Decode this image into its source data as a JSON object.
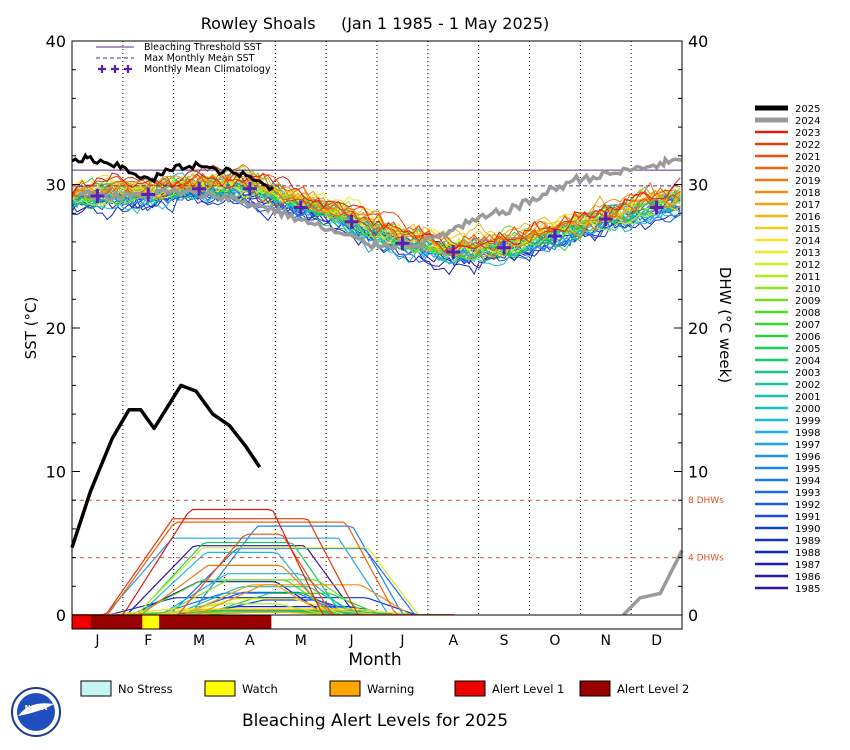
{
  "chart_data": {
    "type": "line",
    "title": "Rowley Shoals     (Jan 1 1985 - 1 May 2025)",
    "xlabel": "Month",
    "ylabel_left": "SST (°C)",
    "ylabel_right": "DHW (°C week)",
    "ylim": [
      0,
      40
    ],
    "yticks": [
      0,
      10,
      20,
      30,
      40
    ],
    "months": [
      "J",
      "F",
      "M",
      "A",
      "M",
      "J",
      "J",
      "A",
      "S",
      "O",
      "N",
      "D"
    ],
    "bleaching_threshold_sst": 31.0,
    "max_monthly_mean_sst": 29.9,
    "dhw_reference_lines": [
      {
        "value": 8,
        "label": "8 DHWs"
      },
      {
        "value": 4,
        "label": "4 DHWs"
      }
    ],
    "legend_top": [
      {
        "label": "Bleaching Threshold SST",
        "style": "solid",
        "color": "#5b2a86"
      },
      {
        "label": "Max Monthly Mean SST",
        "style": "dashed",
        "color": "#5b2a86"
      },
      {
        "label": "Monthly Mean Climatology",
        "style": "plus",
        "color": "#5a1fb5"
      }
    ],
    "climatology": [
      {
        "month": 0.5,
        "value": 29.2
      },
      {
        "month": 1.5,
        "value": 29.3
      },
      {
        "month": 2.5,
        "value": 29.7
      },
      {
        "month": 3.5,
        "value": 29.7
      },
      {
        "month": 4.5,
        "value": 28.4
      },
      {
        "month": 5.5,
        "value": 27.4
      },
      {
        "month": 6.5,
        "value": 25.9
      },
      {
        "month": 7.5,
        "value": 25.3
      },
      {
        "month": 8.5,
        "value": 25.6
      },
      {
        "month": 9.5,
        "value": 26.4
      },
      {
        "month": 10.5,
        "value": 27.6
      },
      {
        "month": 11.5,
        "value": 28.4
      }
    ],
    "years": [
      "2025",
      "2024",
      "2023",
      "2022",
      "2021",
      "2020",
      "2019",
      "2018",
      "2017",
      "2016",
      "2015",
      "2014",
      "2013",
      "2012",
      "2011",
      "2010",
      "2009",
      "2008",
      "2007",
      "2006",
      "2005",
      "2004",
      "2003",
      "2002",
      "2001",
      "2000",
      "1999",
      "1998",
      "1997",
      "1996",
      "1995",
      "1994",
      "1993",
      "1992",
      "1991",
      "1990",
      "1989",
      "1988",
      "1987",
      "1986",
      "1985"
    ],
    "year_colors": [
      "#000000",
      "#9a9a9a",
      "#e11d10",
      "#e8390e",
      "#ee4f0c",
      "#f0620c",
      "#f2780c",
      "#f48c10",
      "#f6a014",
      "#f7b418",
      "#f8c81c",
      "#f9e020",
      "#e8ee22",
      "#cfee22",
      "#b2ea1e",
      "#90e51c",
      "#6fe01c",
      "#50dc22",
      "#34d82c",
      "#22d43c",
      "#1ad052",
      "#16cc68",
      "#14c880",
      "#14c698",
      "#14c4b0",
      "#16c4c6",
      "#1abcd8",
      "#1eb0e2",
      "#20a2e8",
      "#1f94ec",
      "#1e86ee",
      "#1c78ee",
      "#1a6aec",
      "#185ce8",
      "#164ee2",
      "#1440da",
      "#1232d0",
      "#1426c6",
      "#1a1ebc",
      "#2418b2",
      "#2e14a8"
    ],
    "sst_2025": [
      {
        "day": 1,
        "value": 31.5
      },
      {
        "day": 10,
        "value": 31.9
      },
      {
        "day": 20,
        "value": 31.4
      },
      {
        "day": 31,
        "value": 31.2
      },
      {
        "day": 40,
        "value": 30.7
      },
      {
        "day": 48,
        "value": 30.2
      },
      {
        "day": 55,
        "value": 30.8
      },
      {
        "day": 65,
        "value": 31.2
      },
      {
        "day": 75,
        "value": 31.4
      },
      {
        "day": 85,
        "value": 31.0
      },
      {
        "day": 95,
        "value": 30.9
      },
      {
        "day": 105,
        "value": 30.6
      },
      {
        "day": 115,
        "value": 30.0
      },
      {
        "day": 121,
        "value": 29.8
      }
    ],
    "sst_2024": [
      {
        "day": 5,
        "value": 29.4
      },
      {
        "day": 30,
        "value": 29.1
      },
      {
        "day": 60,
        "value": 29.5
      },
      {
        "day": 90,
        "value": 29.2
      },
      {
        "day": 120,
        "value": 28.3
      },
      {
        "day": 150,
        "value": 27.0
      },
      {
        "day": 180,
        "value": 25.8
      },
      {
        "day": 210,
        "value": 25.9
      },
      {
        "day": 240,
        "value": 27.4
      },
      {
        "day": 270,
        "value": 28.6
      },
      {
        "day": 300,
        "value": 30.3
      },
      {
        "day": 330,
        "value": 30.9
      },
      {
        "day": 355,
        "value": 31.5
      },
      {
        "day": 365,
        "value": 31.7
      }
    ],
    "dhw_2025": [
      {
        "day": 1,
        "value": 4.7
      },
      {
        "day": 12,
        "value": 8.6
      },
      {
        "day": 25,
        "value": 12.3
      },
      {
        "day": 35,
        "value": 14.3
      },
      {
        "day": 42,
        "value": 14.3
      },
      {
        "day": 50,
        "value": 13.0
      },
      {
        "day": 58,
        "value": 14.5
      },
      {
        "day": 66,
        "value": 16.0
      },
      {
        "day": 75,
        "value": 15.6
      },
      {
        "day": 85,
        "value": 14.0
      },
      {
        "day": 95,
        "value": 13.2
      },
      {
        "day": 105,
        "value": 11.7
      },
      {
        "day": 113,
        "value": 10.3
      }
    ],
    "dhw_2024_end": [
      {
        "day": 330,
        "value": 0
      },
      {
        "day": 340,
        "value": 1.2
      },
      {
        "day": 352,
        "value": 1.5
      },
      {
        "day": 365,
        "value": 4.5
      }
    ],
    "alert_bar_2025": [
      {
        "start_day": 1,
        "end_day": 12,
        "level": "Alert Level 1"
      },
      {
        "start_day": 12,
        "end_day": 43,
        "level": "Alert Level 2"
      },
      {
        "start_day": 43,
        "end_day": 53,
        "level": "Watch"
      },
      {
        "start_day": 53,
        "end_day": 120,
        "level": "Alert Level 2"
      },
      {
        "start_day": 120,
        "end_day": 365,
        "level": "Blank"
      }
    ]
  },
  "alert_legend": {
    "title": "Bleaching Alert Levels for 2025",
    "items": [
      {
        "label": "No Stress",
        "color": "#c4f4f4"
      },
      {
        "label": "Watch",
        "color": "#ffff00"
      },
      {
        "label": "Warning",
        "color": "#ffa500"
      },
      {
        "label": "Alert Level 1",
        "color": "#ee0000"
      },
      {
        "label": "Alert Level 2",
        "color": "#990000"
      }
    ]
  },
  "logo": {
    "text": "NOAA"
  }
}
